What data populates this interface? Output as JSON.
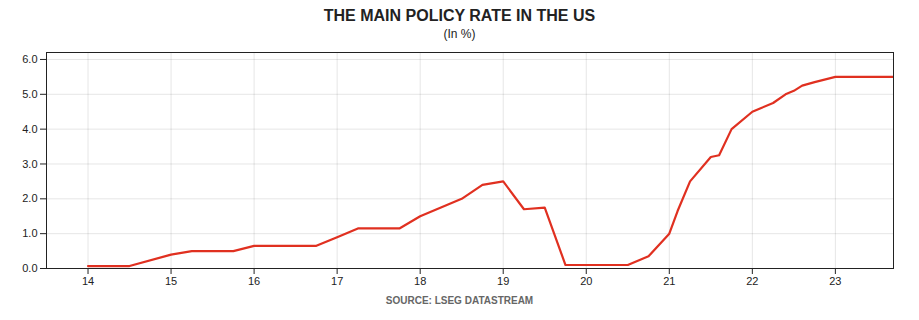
{
  "chart_data": {
    "type": "line",
    "title": "THE MAIN POLICY RATE IN THE US",
    "subtitle": "(In %)",
    "source": "SOURCE: LSEG DATASTREAM",
    "color": "#e03020",
    "grid": true,
    "xlim": [
      13.5,
      23.7
    ],
    "ylim": [
      0,
      6.2
    ],
    "xticks": [
      14,
      15,
      16,
      17,
      18,
      19,
      20,
      21,
      22,
      23
    ],
    "yticks": [
      0,
      1,
      2,
      3,
      4,
      5,
      6
    ],
    "x": [
      14.0,
      14.5,
      15.0,
      15.25,
      15.5,
      15.75,
      16.0,
      16.25,
      16.5,
      16.75,
      17.0,
      17.25,
      17.5,
      17.75,
      18.0,
      18.25,
      18.5,
      18.75,
      19.0,
      19.25,
      19.5,
      19.75,
      20.0,
      20.1,
      20.25,
      20.5,
      20.75,
      21.0,
      21.1,
      21.25,
      21.5,
      21.6,
      21.75,
      22.0,
      22.1,
      22.25,
      22.4,
      22.5,
      22.6,
      22.75,
      23.0,
      23.1,
      23.25,
      23.4,
      23.5,
      23.7
    ],
    "values": [
      0.07,
      0.07,
      0.4,
      0.5,
      0.5,
      0.5,
      0.65,
      0.65,
      0.65,
      0.65,
      0.9,
      1.15,
      1.15,
      1.15,
      1.5,
      1.75,
      2.0,
      2.4,
      2.5,
      1.7,
      1.75,
      0.1,
      0.1,
      0.1,
      0.1,
      0.1,
      0.35,
      1.0,
      1.65,
      2.5,
      3.2,
      3.25,
      4.0,
      4.5,
      4.6,
      4.75,
      5.0,
      5.1,
      5.25,
      5.35,
      5.5,
      5.5,
      5.5,
      5.5,
      5.5,
      5.5
    ]
  }
}
